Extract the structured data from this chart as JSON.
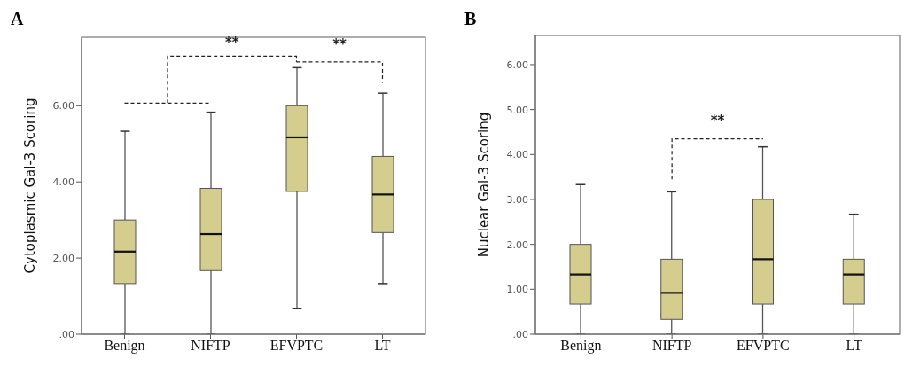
{
  "chart_data": [
    {
      "type": "box",
      "title": "A",
      "ylabel": "Cytoplasmic Gal-3 Scoring",
      "categories": [
        "Benign",
        "NIFTP",
        "EFVPTC",
        "LT"
      ],
      "color": "#d4cd8e",
      "ylim": [
        0,
        7.8
      ],
      "yticks": [
        {
          "value": 0,
          "label": ".00"
        },
        {
          "value": 2,
          "label": "2.00"
        },
        {
          "value": 4,
          "label": "4.00"
        },
        {
          "value": 6,
          "label": "6.00"
        }
      ],
      "boxes": [
        {
          "low": 0,
          "q1": 1.33,
          "median": 2.17,
          "q3": 3.0,
          "high": 5.33
        },
        {
          "low": 0,
          "q1": 1.67,
          "median": 2.63,
          "q3": 3.83,
          "high": 5.83
        },
        {
          "low": 0.67,
          "q1": 3.75,
          "median": 5.17,
          "q3": 6.0,
          "high": 7.0
        },
        {
          "low": 1.33,
          "q1": 2.67,
          "median": 3.67,
          "q3": 4.67,
          "high": 6.33
        }
      ],
      "annotations": [
        "**",
        "**"
      ]
    },
    {
      "type": "box",
      "title": "B",
      "ylabel": "Nuclear Gal-3 Scoring",
      "categories": [
        "Benign",
        "NIFTP",
        "EFVPTC",
        "LT"
      ],
      "color": "#d4cd8e",
      "ylim": [
        0,
        6.65
      ],
      "yticks": [
        {
          "value": 0,
          "label": ".00"
        },
        {
          "value": 1,
          "label": "1.00"
        },
        {
          "value": 2,
          "label": "2.00"
        },
        {
          "value": 3,
          "label": "3.00"
        },
        {
          "value": 4,
          "label": "4.00"
        },
        {
          "value": 5,
          "label": "5.00"
        },
        {
          "value": 6,
          "label": "6.00"
        }
      ],
      "boxes": [
        {
          "low": 0,
          "q1": 0.67,
          "median": 1.33,
          "q3": 2.0,
          "high": 3.33
        },
        {
          "low": 0,
          "q1": 0.33,
          "median": 0.92,
          "q3": 1.67,
          "high": 3.17
        },
        {
          "low": 0,
          "q1": 0.67,
          "median": 1.67,
          "q3": 3.0,
          "high": 4.17
        },
        {
          "low": 0,
          "q1": 0.67,
          "median": 1.33,
          "q3": 1.67,
          "high": 2.67
        }
      ],
      "annotations": [
        "**"
      ]
    }
  ]
}
